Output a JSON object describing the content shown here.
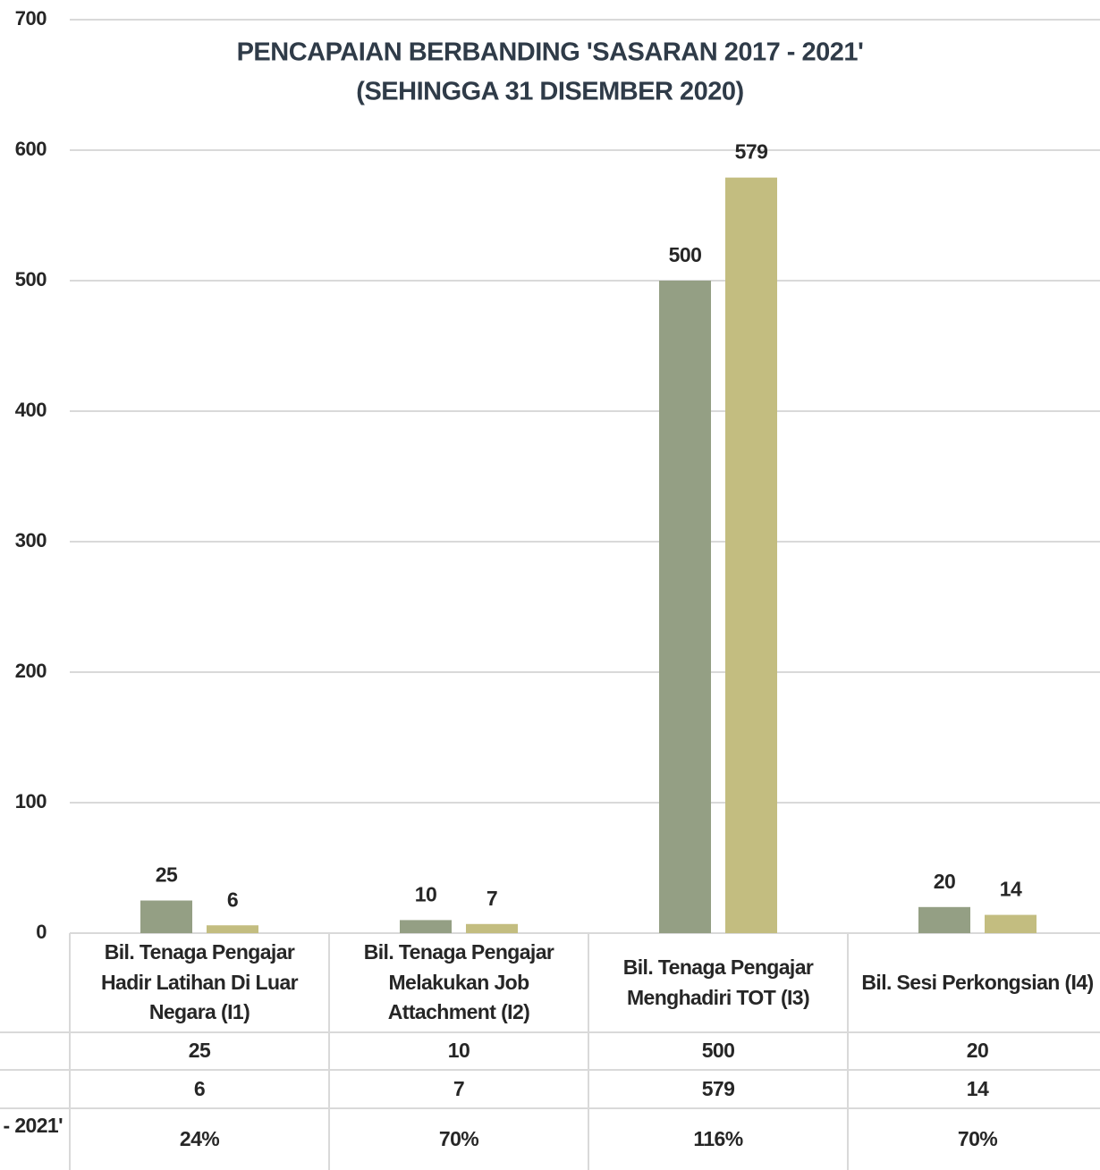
{
  "chart_data": {
    "type": "bar",
    "title": "PENCAPAIAN BERBANDING 'SASARAN 2017 - 2021'",
    "subtitle": "(SEHINGGA 31 DISEMBER 2020)",
    "categories": [
      "Bil. Tenaga Pengajar Hadir Latihan Di Luar Negara (I1)",
      "Bil. Tenaga Pengajar Melakukan Job Attachment (I2)",
      "Bil. Tenaga Pengajar Menghadiri TOT (I3)",
      "Bil. Sesi Perkongsian (I4)"
    ],
    "series": [
      {
        "color": "#949f84",
        "values": [
          25,
          10,
          500,
          20
        ]
      },
      {
        "color": "#c3bd80",
        "values": [
          6,
          7,
          579,
          14
        ]
      }
    ],
    "achievement": {
      "label": "- 2021'",
      "values": [
        24,
        70,
        116,
        70
      ],
      "value_labels": [
        "24%",
        "70%",
        "116%",
        "70%"
      ]
    },
    "ylim": [
      0,
      700
    ],
    "yticks": [
      0,
      100,
      200,
      300,
      400,
      500,
      600,
      700
    ],
    "grid": true
  }
}
